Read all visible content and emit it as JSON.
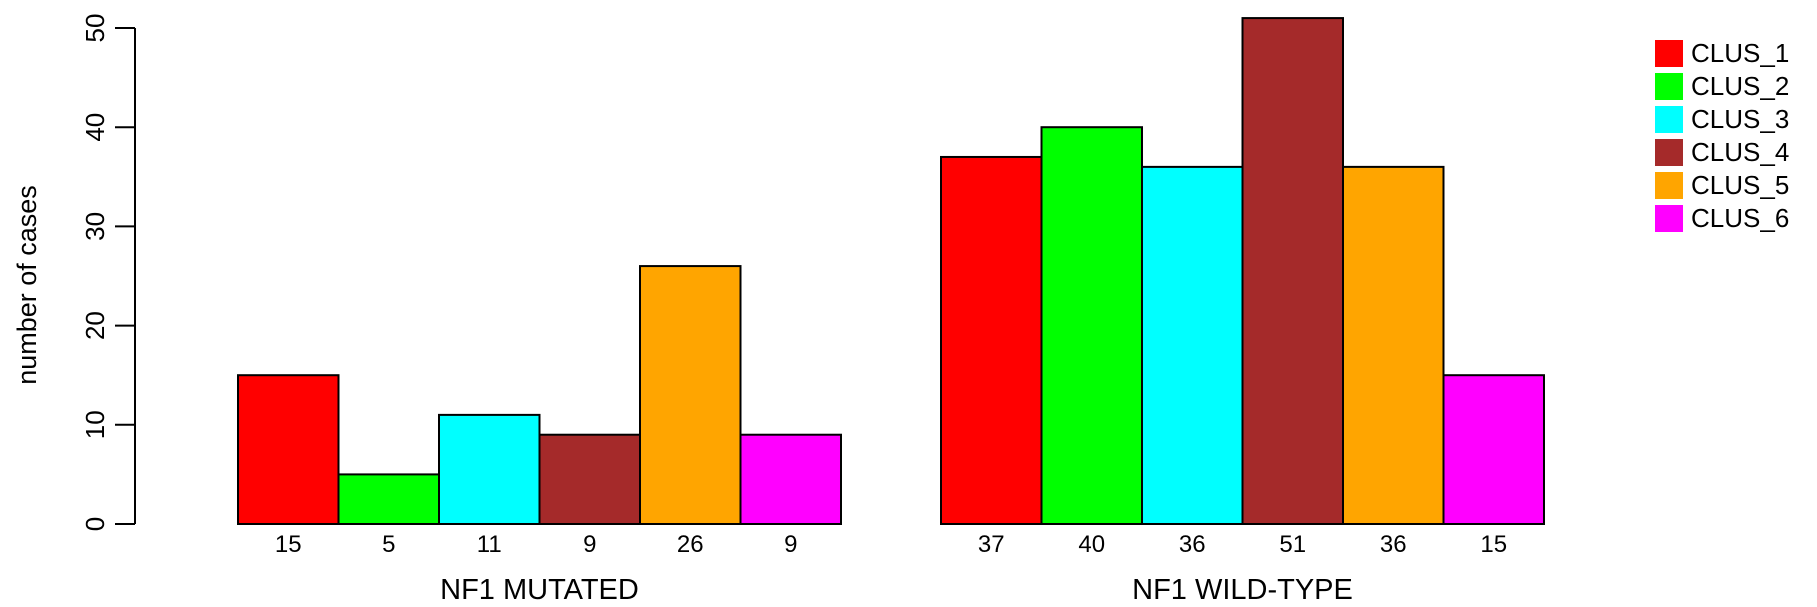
{
  "chart_data": {
    "type": "bar",
    "ylabel": "number of cases",
    "ylim": [
      0,
      50
    ],
    "yticks": [
      0,
      10,
      20,
      30,
      40,
      50
    ],
    "groups": [
      {
        "name": "NF1 MUTATED",
        "values": [
          15,
          5,
          11,
          9,
          26,
          9
        ],
        "labels": [
          "15",
          "5",
          "11",
          "9",
          "26",
          "9"
        ]
      },
      {
        "name": "NF1 WILD-TYPE",
        "values": [
          37,
          40,
          36,
          51,
          36,
          15
        ],
        "labels": [
          "37",
          "40",
          "36",
          "51",
          "36",
          "15"
        ]
      }
    ],
    "series": [
      {
        "name": "CLUS_1",
        "color": "#FF0000"
      },
      {
        "name": "CLUS_2",
        "color": "#00FF00"
      },
      {
        "name": "CLUS_3",
        "color": "#00FFFF"
      },
      {
        "name": "CLUS_4",
        "color": "#A52A2A"
      },
      {
        "name": "CLUS_5",
        "color": "#FFA500"
      },
      {
        "name": "CLUS_6",
        "color": "#FF00FF"
      }
    ],
    "legend_position": "top-right",
    "grid": false
  }
}
